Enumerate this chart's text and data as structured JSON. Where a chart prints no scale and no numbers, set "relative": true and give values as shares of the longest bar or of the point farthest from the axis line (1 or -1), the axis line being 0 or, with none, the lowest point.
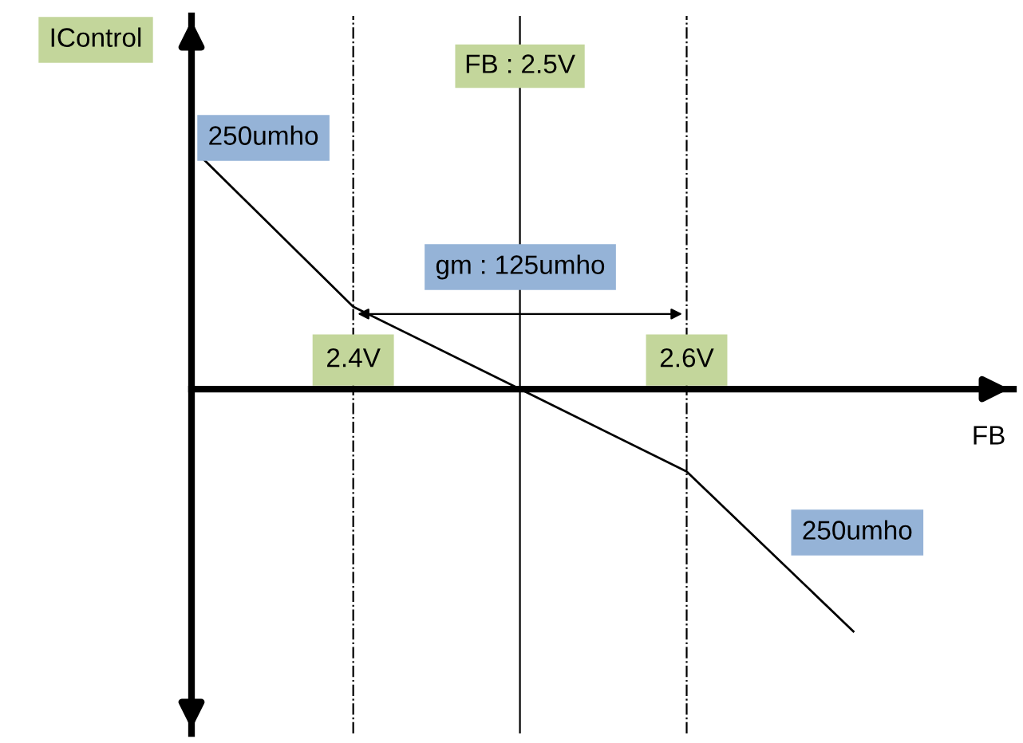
{
  "chart_data": {
    "type": "line",
    "relative": true,
    "ylabel": "IControl",
    "xlabel": "FB",
    "x": [
      2.31,
      2.4,
      2.5,
      2.6,
      2.7
    ],
    "series": [
      {
        "color": "#000000",
        "values": [
          0.95,
          0.34,
          0,
          -0.34,
          -1.0
        ]
      }
    ],
    "xlim": [
      2.303,
      2.796
    ],
    "xticks": [
      {
        "value": 2.4,
        "label": "2.4V"
      },
      {
        "value": 2.6,
        "label": "2.6V"
      }
    ],
    "ref_lines": [
      {
        "axis": "x",
        "value": 2.4,
        "line_style": "dashdot",
        "color": "#000000"
      },
      {
        "axis": "x",
        "value": 2.5,
        "label": "FB : 2.5V",
        "line_style": "solid",
        "color": "#000000"
      },
      {
        "axis": "x",
        "value": 2.6,
        "line_style": "dashdot",
        "color": "#000000"
      }
    ],
    "annotations": [
      "250umho",
      "gm : 125umho",
      "250umho"
    ],
    "marker": "none",
    "line_style": "solid"
  }
}
